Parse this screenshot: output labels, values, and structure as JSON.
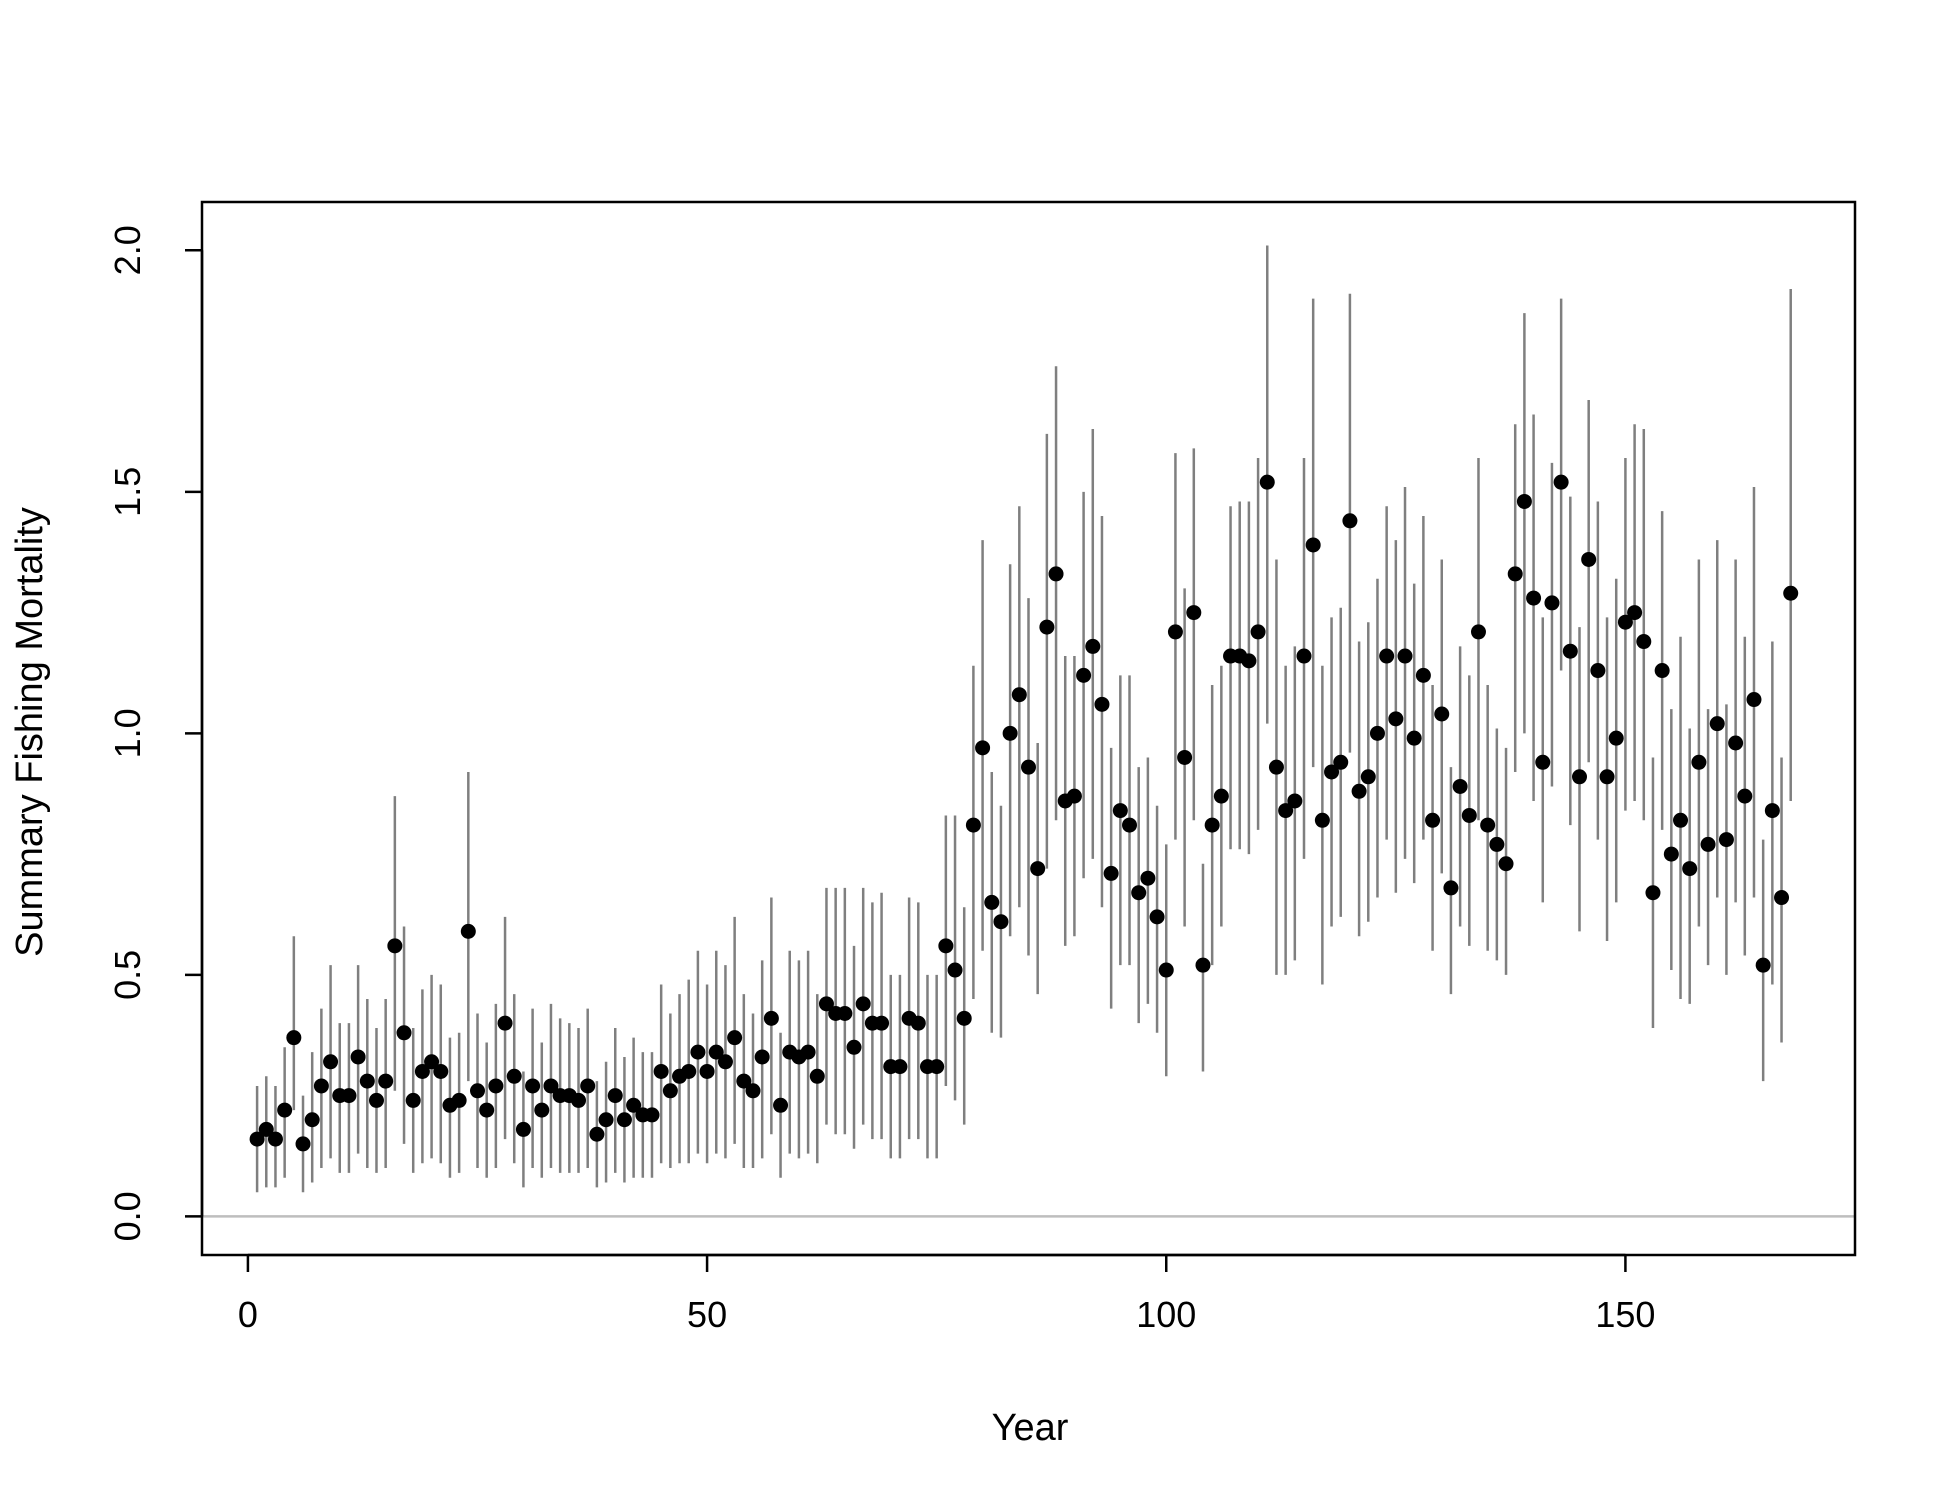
{
  "chart_data": {
    "type": "scatter",
    "xlabel": "Year",
    "ylabel": "Summary Fishing Mortality",
    "xlim": [
      -5,
      175
    ],
    "ylim": [
      -0.08,
      2.1
    ],
    "xticks": [
      0,
      50,
      100,
      150
    ],
    "xtick_labels": [
      "0",
      "50",
      "100",
      "150"
    ],
    "yticks": [
      0,
      0.5,
      1,
      1.5,
      2
    ],
    "ytick_labels": [
      "0.0",
      "0.5",
      "1.0",
      "1.5",
      "2.0"
    ],
    "reference_line_y": 0,
    "grid": false,
    "legend": "none",
    "colors": {
      "point": "#000000",
      "error_bar": "#7f7f7f",
      "reference_line": "#bebebe",
      "axis": "#000000"
    },
    "x": [
      1,
      2,
      3,
      4,
      5,
      6,
      7,
      8,
      9,
      10,
      11,
      12,
      13,
      14,
      15,
      16,
      17,
      18,
      19,
      20,
      21,
      22,
      23,
      24,
      25,
      26,
      27,
      28,
      29,
      30,
      31,
      32,
      33,
      34,
      35,
      36,
      37,
      38,
      39,
      40,
      41,
      42,
      43,
      44,
      45,
      46,
      47,
      48,
      49,
      50,
      51,
      52,
      53,
      54,
      55,
      56,
      57,
      58,
      59,
      60,
      61,
      62,
      63,
      64,
      65,
      66,
      67,
      68,
      69,
      70,
      71,
      72,
      73,
      74,
      75,
      76,
      77,
      78,
      79,
      80,
      81,
      82,
      83,
      84,
      85,
      86,
      87,
      88,
      89,
      90,
      91,
      92,
      93,
      94,
      95,
      96,
      97,
      98,
      99,
      100,
      101,
      102,
      103,
      104,
      105,
      106,
      107,
      108,
      109,
      110,
      111,
      112,
      113,
      114,
      115,
      116,
      117,
      118,
      119,
      120,
      121,
      122,
      123,
      124,
      125,
      126,
      127,
      128,
      129,
      130,
      131,
      132,
      133,
      134,
      135,
      136,
      137,
      138,
      139,
      140,
      141,
      142,
      143,
      144,
      145,
      146,
      147,
      148,
      149,
      150,
      151,
      152,
      153,
      154,
      155,
      156,
      157,
      158,
      159,
      160,
      161,
      162,
      163,
      164,
      165,
      166,
      167,
      168
    ],
    "y": [
      0.16,
      0.18,
      0.16,
      0.22,
      0.37,
      0.15,
      0.2,
      0.27,
      0.32,
      0.25,
      0.25,
      0.33,
      0.28,
      0.24,
      0.28,
      0.56,
      0.38,
      0.24,
      0.3,
      0.32,
      0.3,
      0.23,
      0.24,
      0.59,
      0.26,
      0.22,
      0.27,
      0.4,
      0.29,
      0.18,
      0.27,
      0.22,
      0.27,
      0.25,
      0.25,
      0.24,
      0.27,
      0.17,
      0.2,
      0.25,
      0.2,
      0.23,
      0.21,
      0.21,
      0.3,
      0.26,
      0.29,
      0.3,
      0.34,
      0.3,
      0.34,
      0.32,
      0.37,
      0.28,
      0.26,
      0.33,
      0.41,
      0.23,
      0.34,
      0.33,
      0.34,
      0.29,
      0.44,
      0.42,
      0.42,
      0.35,
      0.44,
      0.4,
      0.4,
      0.31,
      0.31,
      0.41,
      0.4,
      0.31,
      0.31,
      0.56,
      0.51,
      0.41,
      0.81,
      0.97,
      0.65,
      0.61,
      1.0,
      1.08,
      0.93,
      0.72,
      1.22,
      1.33,
      0.86,
      0.87,
      1.12,
      1.18,
      1.06,
      0.71,
      0.84,
      0.81,
      0.67,
      0.7,
      0.62,
      0.51,
      1.21,
      0.95,
      1.25,
      0.52,
      0.81,
      0.87,
      1.16,
      1.16,
      1.15,
      1.21,
      1.52,
      0.93,
      0.84,
      0.86,
      1.16,
      1.39,
      0.82,
      0.92,
      0.94,
      1.44,
      0.88,
      0.91,
      1.0,
      1.16,
      1.03,
      1.16,
      0.99,
      1.12,
      0.82,
      1.04,
      0.68,
      0.89,
      0.83,
      1.21,
      0.81,
      0.77,
      0.73,
      1.33,
      1.48,
      1.28,
      0.94,
      1.27,
      1.52,
      1.17,
      0.91,
      1.36,
      1.13,
      0.91,
      0.99,
      1.23,
      1.25,
      1.19,
      0.67,
      1.13,
      0.75,
      0.82,
      0.72,
      0.94,
      0.77,
      1.02,
      0.78,
      0.98,
      0.87,
      1.07,
      0.52,
      0.84,
      0.66,
      1.29
    ],
    "y_lower": [
      0.05,
      0.06,
      0.06,
      0.08,
      0.22,
      0.05,
      0.07,
      0.1,
      0.12,
      0.09,
      0.09,
      0.13,
      0.1,
      0.09,
      0.1,
      0.26,
      0.15,
      0.09,
      0.11,
      0.12,
      0.11,
      0.08,
      0.09,
      0.28,
      0.1,
      0.08,
      0.1,
      0.16,
      0.11,
      0.06,
      0.1,
      0.08,
      0.1,
      0.09,
      0.09,
      0.09,
      0.1,
      0.06,
      0.07,
      0.09,
      0.07,
      0.08,
      0.08,
      0.08,
      0.11,
      0.1,
      0.11,
      0.11,
      0.13,
      0.11,
      0.13,
      0.12,
      0.15,
      0.1,
      0.1,
      0.12,
      0.17,
      0.08,
      0.13,
      0.12,
      0.13,
      0.11,
      0.19,
      0.17,
      0.17,
      0.14,
      0.19,
      0.16,
      0.16,
      0.12,
      0.12,
      0.16,
      0.16,
      0.12,
      0.12,
      0.27,
      0.24,
      0.19,
      0.45,
      0.55,
      0.38,
      0.37,
      0.58,
      0.64,
      0.54,
      0.46,
      0.72,
      0.82,
      0.56,
      0.58,
      0.7,
      0.74,
      0.64,
      0.43,
      0.52,
      0.52,
      0.4,
      0.44,
      0.38,
      0.29,
      0.78,
      0.6,
      0.82,
      0.3,
      0.52,
      0.6,
      0.76,
      0.76,
      0.75,
      0.8,
      1.02,
      0.5,
      0.5,
      0.53,
      0.74,
      0.93,
      0.48,
      0.6,
      0.62,
      0.96,
      0.58,
      0.61,
      0.66,
      0.78,
      0.67,
      0.74,
      0.69,
      0.78,
      0.55,
      0.71,
      0.46,
      0.6,
      0.56,
      0.82,
      0.55,
      0.53,
      0.5,
      0.92,
      1.0,
      0.86,
      0.65,
      0.89,
      1.13,
      0.81,
      0.59,
      0.94,
      0.78,
      0.57,
      0.65,
      0.84,
      0.86,
      0.82,
      0.39,
      0.8,
      0.51,
      0.45,
      0.44,
      0.6,
      0.52,
      0.66,
      0.5,
      0.65,
      0.54,
      0.66,
      0.28,
      0.48,
      0.36,
      0.86
    ],
    "y_upper": [
      0.27,
      0.29,
      0.27,
      0.35,
      0.58,
      0.25,
      0.34,
      0.43,
      0.52,
      0.4,
      0.4,
      0.52,
      0.45,
      0.39,
      0.45,
      0.87,
      0.6,
      0.39,
      0.47,
      0.5,
      0.48,
      0.37,
      0.38,
      0.92,
      0.42,
      0.36,
      0.44,
      0.62,
      0.46,
      0.3,
      0.43,
      0.36,
      0.44,
      0.41,
      0.4,
      0.39,
      0.43,
      0.28,
      0.32,
      0.39,
      0.33,
      0.37,
      0.34,
      0.34,
      0.48,
      0.42,
      0.46,
      0.49,
      0.55,
      0.48,
      0.55,
      0.52,
      0.62,
      0.46,
      0.42,
      0.53,
      0.66,
      0.38,
      0.55,
      0.53,
      0.55,
      0.46,
      0.68,
      0.68,
      0.68,
      0.56,
      0.68,
      0.65,
      0.67,
      0.5,
      0.5,
      0.66,
      0.65,
      0.5,
      0.5,
      0.83,
      0.83,
      0.64,
      1.14,
      1.4,
      0.92,
      0.85,
      1.35,
      1.47,
      1.28,
      0.98,
      1.62,
      1.76,
      1.16,
      1.16,
      1.5,
      1.63,
      1.45,
      0.97,
      1.12,
      1.12,
      0.93,
      0.95,
      0.85,
      0.77,
      1.58,
      1.3,
      1.59,
      0.73,
      1.1,
      1.14,
      1.47,
      1.48,
      1.48,
      1.57,
      2.01,
      1.36,
      1.14,
      1.18,
      1.57,
      1.9,
      1.14,
      1.24,
      1.26,
      1.91,
      1.19,
      1.23,
      1.32,
      1.47,
      1.4,
      1.51,
      1.31,
      1.45,
      1.1,
      1.36,
      0.93,
      1.18,
      1.12,
      1.57,
      1.1,
      1.01,
      0.97,
      1.64,
      1.87,
      1.66,
      1.24,
      1.56,
      1.9,
      1.49,
      1.22,
      1.69,
      1.48,
      1.24,
      1.32,
      1.57,
      1.64,
      1.63,
      0.95,
      1.46,
      1.05,
      1.2,
      1.01,
      1.36,
      1.05,
      1.4,
      1.06,
      1.36,
      1.2,
      1.51,
      0.78,
      1.19,
      0.95,
      1.92
    ]
  }
}
